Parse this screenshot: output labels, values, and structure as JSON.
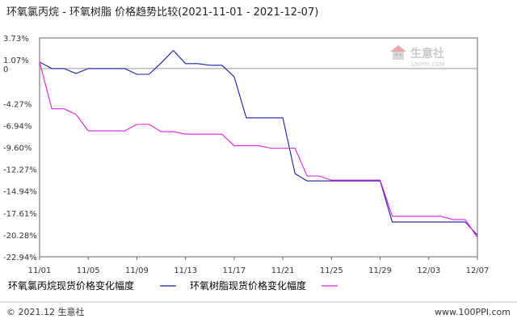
{
  "title": "环氧氯丙烷 - 环氧树脂 价格趋势比较(2021-11-01 - 2021-12-07)",
  "footer": {
    "left": "© 2021.12 生意社",
    "right": "www.100PPI.com"
  },
  "watermark": {
    "main": "生意社",
    "sub": "100PPI.COM"
  },
  "colors": {
    "series1": "#1a1aa6",
    "series2": "#e01ee0",
    "ytick_positive": "#c00000",
    "ytick_negative": "#c00000",
    "zero_line": "#999999",
    "frame": "#666666"
  },
  "chart_data": {
    "type": "line",
    "title": "环氧氯丙烷 - 环氧树脂 价格趋势比较(2021-11-01 - 2021-12-07)",
    "xlabel": "",
    "ylabel": "",
    "x_ticks": [
      "11/01",
      "11/05",
      "11/09",
      "11/13",
      "11/17",
      "11/21",
      "11/25",
      "11/29",
      "12/03",
      "12/07"
    ],
    "y_ticks": [
      "3.73%",
      "1.07%",
      "0",
      "-4.27%",
      "-6.94%",
      "-9.60%",
      "-12.27%",
      "-14.94%",
      "-17.61%",
      "-20.28%",
      "-22.94%"
    ],
    "y_tick_values": [
      3.73,
      1.07,
      0,
      -4.27,
      -6.94,
      -9.6,
      -12.27,
      -14.94,
      -17.61,
      -20.28,
      -22.94
    ],
    "ylim": [
      -22.94,
      3.73
    ],
    "x": [
      "11/01",
      "11/02",
      "11/03",
      "11/04",
      "11/05",
      "11/06",
      "11/07",
      "11/08",
      "11/09",
      "11/10",
      "11/11",
      "11/12",
      "11/13",
      "11/14",
      "11/15",
      "11/16",
      "11/17",
      "11/18",
      "11/19",
      "11/20",
      "11/21",
      "11/22",
      "11/23",
      "11/24",
      "11/25",
      "11/26",
      "11/27",
      "11/28",
      "11/29",
      "11/30",
      "12/01",
      "12/02",
      "12/03",
      "12/04",
      "12/05",
      "12/06",
      "12/07"
    ],
    "grid": false,
    "legend_placement": "bottom",
    "series": [
      {
        "name": "环氧氯丙烷现货价格变化幅度",
        "values": [
          0.8,
          0,
          0,
          -0.6,
          0,
          0,
          0,
          0,
          -0.7,
          -0.7,
          0.7,
          2.2,
          0.6,
          0.6,
          0.4,
          0.4,
          -1.0,
          -6.0,
          -6.0,
          -6.0,
          -6.0,
          -12.8,
          -13.7,
          -13.7,
          -13.7,
          -13.7,
          -13.7,
          -13.7,
          -13.7,
          -18.7,
          -18.7,
          -18.7,
          -18.7,
          -18.7,
          -18.7,
          -18.7,
          -20.3
        ]
      },
      {
        "name": "环氧树脂现货价格变化幅度",
        "values": [
          0.8,
          -4.9,
          -4.9,
          -5.6,
          -7.6,
          -7.6,
          -7.6,
          -7.6,
          -6.8,
          -6.8,
          -7.7,
          -7.7,
          -8.0,
          -8.0,
          -8.0,
          -8.0,
          -9.4,
          -9.4,
          -9.4,
          -9.7,
          -9.7,
          -9.7,
          -13.1,
          -13.1,
          -13.6,
          -13.6,
          -13.6,
          -13.6,
          -13.6,
          -18.0,
          -18.0,
          -18.0,
          -18.0,
          -18.0,
          -18.4,
          -18.4,
          -20.6
        ]
      }
    ]
  }
}
